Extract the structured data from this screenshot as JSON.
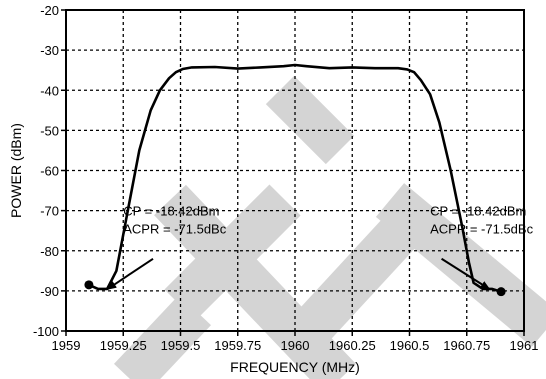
{
  "chart_data": {
    "type": "line",
    "title": "",
    "xlabel": "FREQUENCY (MHz)",
    "ylabel": "POWER (dBm)",
    "xlim": [
      1959,
      1961
    ],
    "ylim": [
      -100,
      -20
    ],
    "grid": true,
    "x_ticks": [
      1959,
      1959.25,
      1959.5,
      1959.75,
      1960,
      1960.25,
      1960.5,
      1960.75,
      1961
    ],
    "x_tick_labels": [
      "1959",
      "1959.25",
      "1959.5",
      "1959.75",
      "1960",
      "1960.25",
      "1960.5",
      "1960.75",
      "1961"
    ],
    "y_ticks": [
      -20,
      -30,
      -40,
      -50,
      -60,
      -70,
      -80,
      -90,
      -100
    ],
    "y_tick_labels": [
      "-20",
      "-30",
      "-40",
      "-50",
      "-60",
      "-70",
      "-80",
      "-90",
      "-100"
    ],
    "series": [
      {
        "color": "#000000",
        "x": [
          1959.1,
          1959.14,
          1959.18,
          1959.22,
          1959.27,
          1959.32,
          1959.37,
          1959.41,
          1959.45,
          1959.48,
          1959.51,
          1959.55,
          1959.65,
          1959.75,
          1959.85,
          1959.95,
          1960.0,
          1960.05,
          1960.15,
          1960.25,
          1960.35,
          1960.45,
          1960.49,
          1960.52,
          1960.55,
          1960.59,
          1960.63,
          1960.68,
          1960.73,
          1960.76,
          1960.78,
          1960.82,
          1960.86,
          1960.9
        ],
        "y": [
          -88.5,
          -89.5,
          -89.5,
          -85,
          -70,
          -55,
          -45,
          -40,
          -37,
          -35.5,
          -34.7,
          -34.3,
          -34.2,
          -34.6,
          -34.3,
          -34.0,
          -33.7,
          -34.0,
          -34.5,
          -34.3,
          -34.5,
          -34.5,
          -34.8,
          -35.5,
          -37.5,
          -41,
          -48,
          -60,
          -74,
          -83,
          -88,
          -89.5,
          -89.5,
          -90.2
        ]
      }
    ],
    "markers": [
      {
        "x": 1959.1,
        "y": -88.5
      },
      {
        "x": 1960.9,
        "y": -90.2
      }
    ],
    "annotations": [
      {
        "lines": [
          "CP = -18.42dBm",
          "ACPR = -71.5dBc"
        ],
        "text_x": 1959.25,
        "text_y": -71.2,
        "arrow_from": [
          1959.38,
          -82
        ],
        "arrow_to": [
          1959.18,
          -89.6
        ]
      },
      {
        "lines": [
          "CP = -18.42dBm",
          "ACPR = -71.5dBc"
        ],
        "text_x": 1960.59,
        "text_y": -71.2,
        "arrow_from": [
          1960.64,
          -82
        ],
        "arrow_to": [
          1960.85,
          -89.6
        ]
      }
    ],
    "watermark_color": "#d4d4d4"
  }
}
